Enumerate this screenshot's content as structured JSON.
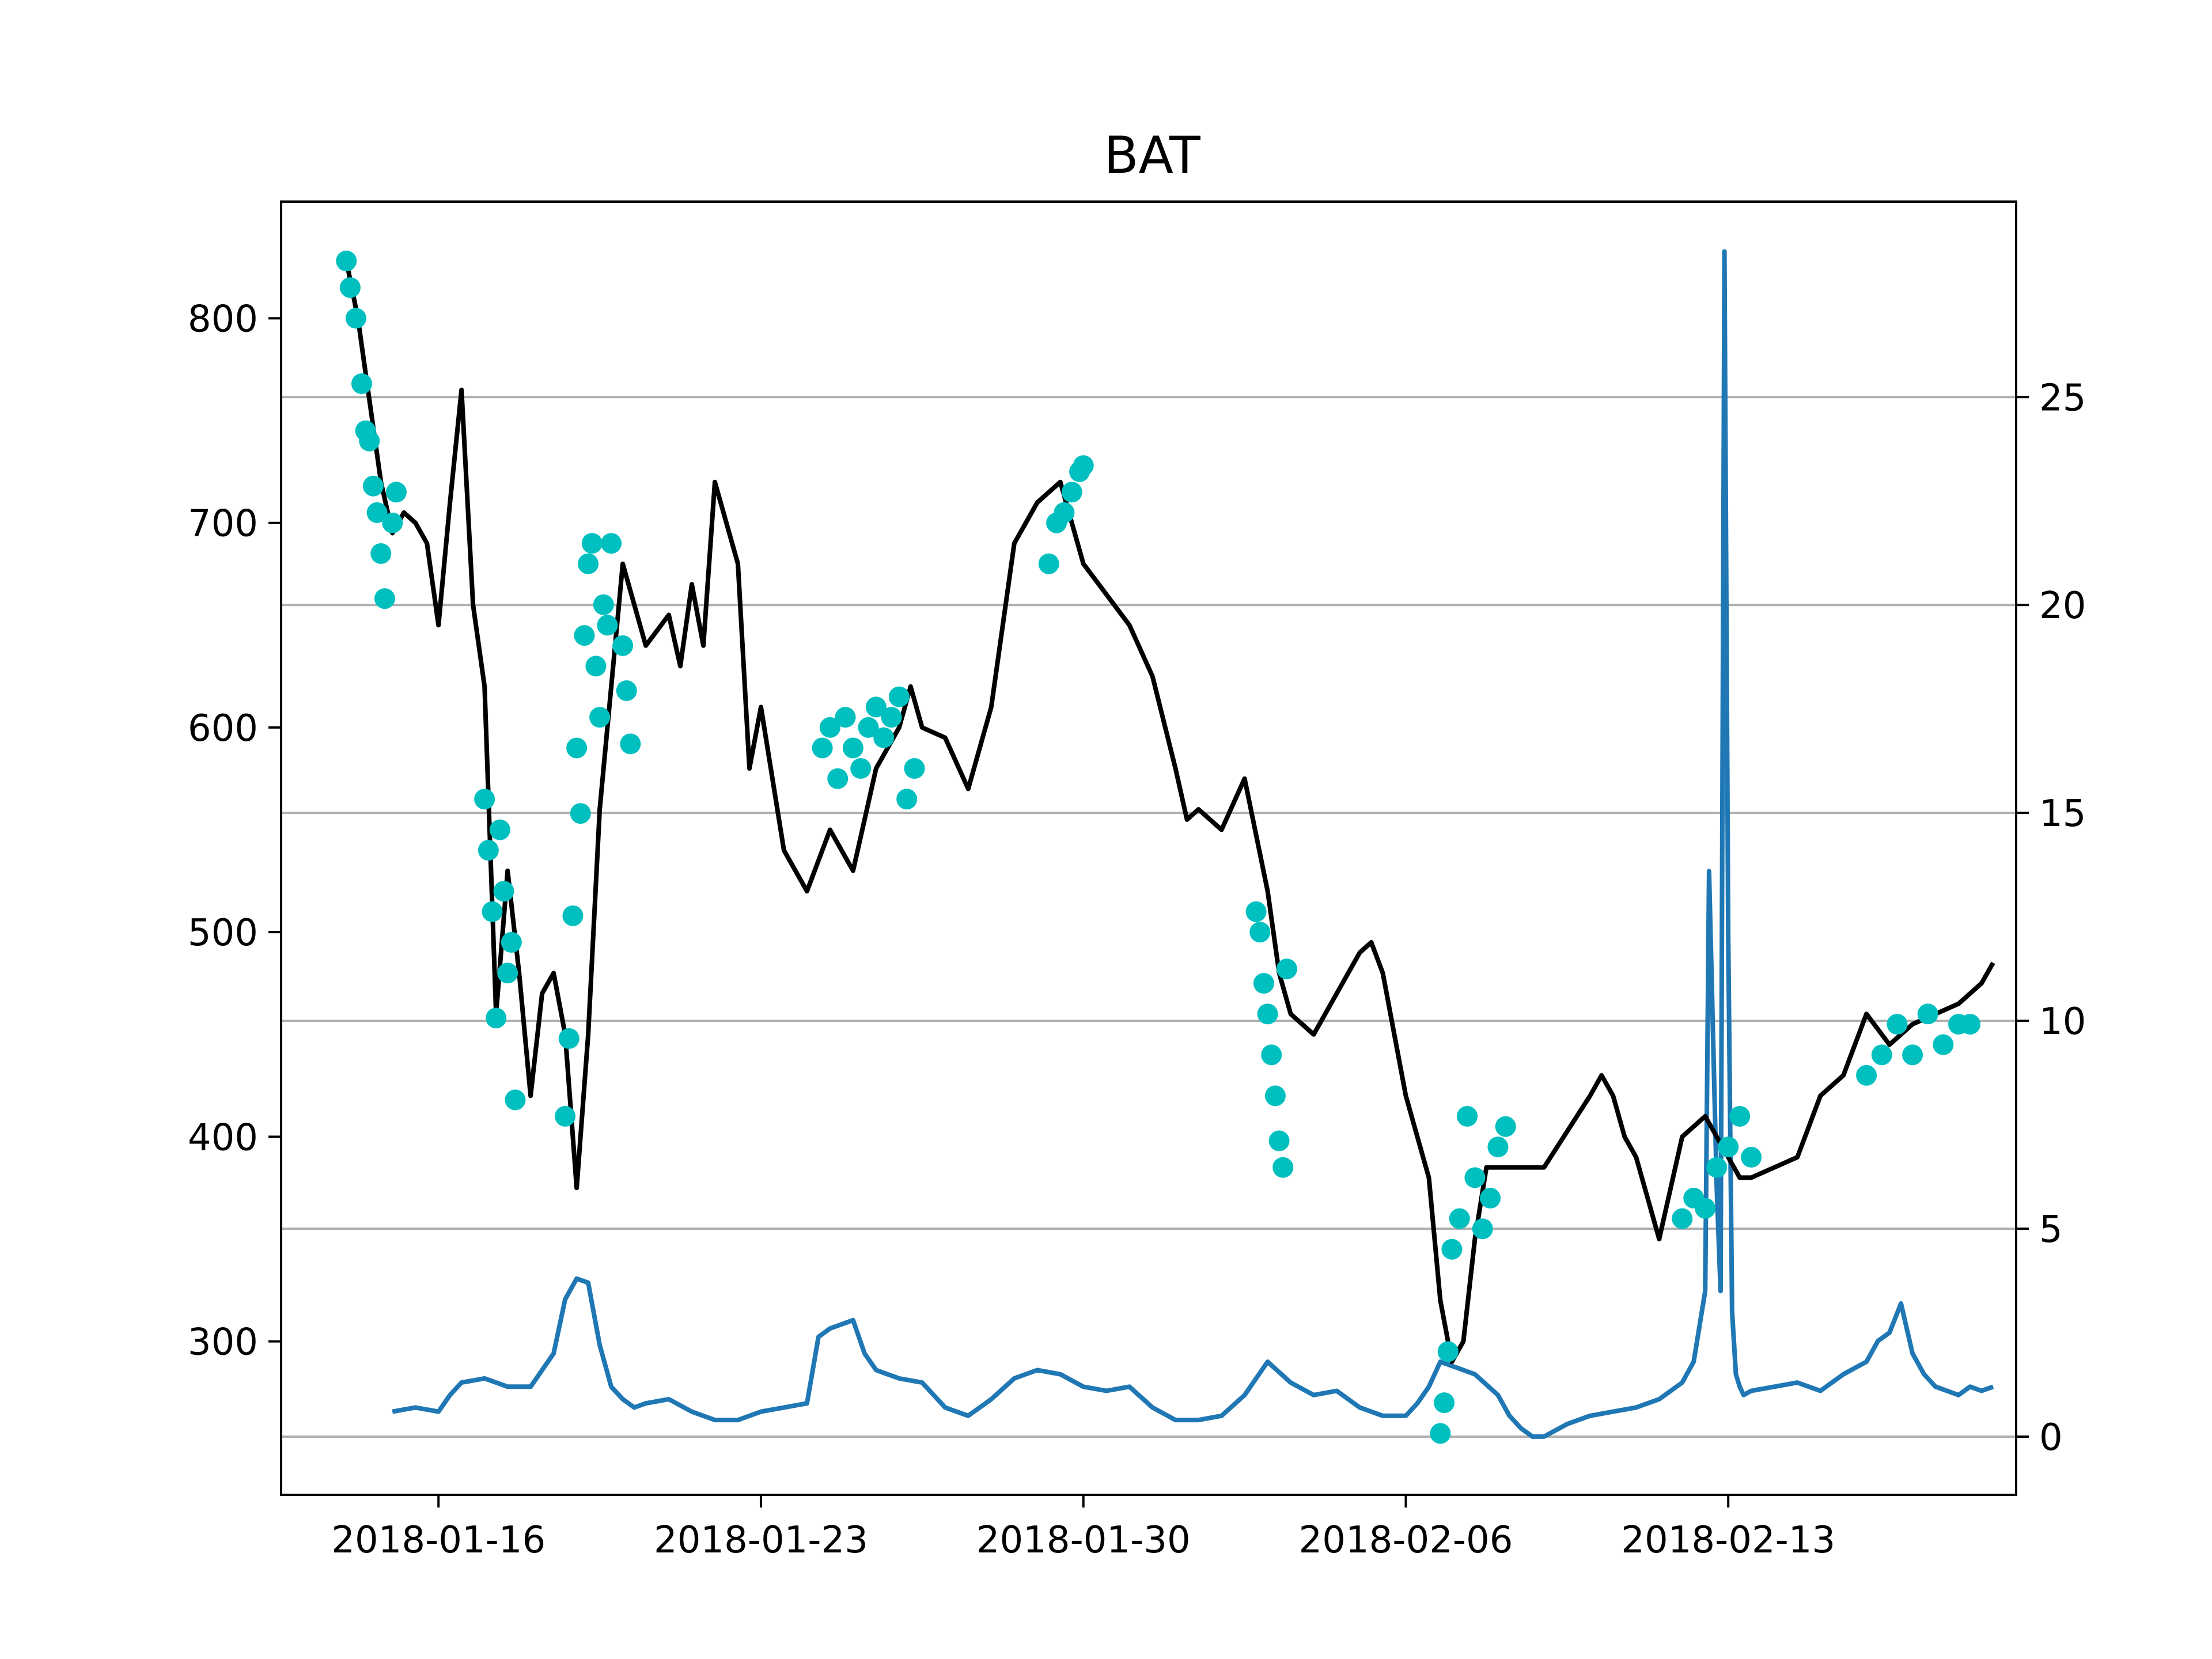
{
  "chart_data": {
    "type": "line",
    "title": "BAT",
    "xlabel": "",
    "ylabel": "",
    "y2label": "",
    "x_ticks": [
      "2018-01-16",
      "2018-01-23",
      "2018-01-30",
      "2018-02-06",
      "2018-02-13"
    ],
    "xlim": [
      "2018-01-12 14:00",
      "2018-02-19 06:00"
    ],
    "ylim": [
      225,
      857
    ],
    "y_ticks": [
      300,
      400,
      500,
      600,
      700,
      800
    ],
    "y2lim": [
      -1.4,
      29.7
    ],
    "y2_ticks": [
      0,
      5,
      10,
      15,
      20,
      25
    ],
    "grid": "horizontal on right axis",
    "colors": {
      "price": "#000000",
      "markers": "#00bfbf",
      "secondary": "#1f77b4",
      "grid": "#b0b0b0"
    },
    "series": [
      {
        "axis": "left",
        "color": "#000000",
        "x": [
          "2018-01-14",
          "2018-01-14 06:00",
          "2018-01-14 12:00",
          "2018-01-14 18:00",
          "2018-01-15",
          "2018-01-15 06:00",
          "2018-01-15 12:00",
          "2018-01-15 18:00",
          "2018-01-16",
          "2018-01-16 06:00",
          "2018-01-16 12:00",
          "2018-01-16 18:00",
          "2018-01-17",
          "2018-01-17 06:00",
          "2018-01-17 12:00",
          "2018-01-17 18:00",
          "2018-01-18",
          "2018-01-18 06:00",
          "2018-01-18 12:00",
          "2018-01-18 18:00",
          "2018-01-19",
          "2018-01-19 06:00",
          "2018-01-19 12:00",
          "2018-01-19 18:00",
          "2018-01-20",
          "2018-01-20 12:00",
          "2018-01-21",
          "2018-01-21 06:00",
          "2018-01-21 12:00",
          "2018-01-21 18:00",
          "2018-01-22",
          "2018-01-22 06:00",
          "2018-01-22 12:00",
          "2018-01-22 18:00",
          "2018-01-23",
          "2018-01-23 12:00",
          "2018-01-24",
          "2018-01-24 12:00",
          "2018-01-25",
          "2018-01-25 12:00",
          "2018-01-26",
          "2018-01-26 06:00",
          "2018-01-26 12:00",
          "2018-01-27",
          "2018-01-27 12:00",
          "2018-01-28",
          "2018-01-28 12:00",
          "2018-01-29",
          "2018-01-29 12:00",
          "2018-01-30",
          "2018-01-30 12:00",
          "2018-01-31",
          "2018-01-31 12:00",
          "2018-02-01",
          "2018-02-01 06:00",
          "2018-02-01 12:00",
          "2018-02-02",
          "2018-02-02 12:00",
          "2018-02-03",
          "2018-02-03 06:00",
          "2018-02-03 12:00",
          "2018-02-04",
          "2018-02-04 12:00",
          "2018-02-05",
          "2018-02-05 06:00",
          "2018-02-05 12:00",
          "2018-02-05 18:00",
          "2018-02-06",
          "2018-02-06 06:00",
          "2018-02-06 12:00",
          "2018-02-06 18:00",
          "2018-02-07",
          "2018-02-07 06:00",
          "2018-02-07 12:00",
          "2018-02-07 18:00",
          "2018-02-08",
          "2018-02-09",
          "2018-02-10",
          "2018-02-10 06:00",
          "2018-02-10 12:00",
          "2018-02-10 18:00",
          "2018-02-11",
          "2018-02-11 06:00",
          "2018-02-11 12:00",
          "2018-02-12",
          "2018-02-12 12:00",
          "2018-02-13",
          "2018-02-13 06:00",
          "2018-02-13 12:00",
          "2018-02-14",
          "2018-02-14 12:00",
          "2018-02-15",
          "2018-02-15 12:00",
          "2018-02-16",
          "2018-02-16 12:00",
          "2018-02-17",
          "2018-02-17 12:00",
          "2018-02-18",
          "2018-02-18 12:00",
          "2018-02-18 18:00"
        ],
        "y": [
          828,
          800,
          760,
          720,
          695,
          705,
          700,
          690,
          650,
          710,
          765,
          660,
          620,
          460,
          530,
          480,
          420,
          470,
          480,
          450,
          375,
          450,
          560,
          620,
          680,
          640,
          655,
          630,
          670,
          640,
          720,
          700,
          680,
          580,
          610,
          540,
          520,
          550,
          530,
          580,
          600,
          620,
          600,
          595,
          570,
          610,
          690,
          710,
          720,
          680,
          665,
          650,
          625,
          580,
          555,
          560,
          550,
          575,
          520,
          480,
          460,
          450,
          470,
          490,
          495,
          480,
          450,
          420,
          400,
          380,
          320,
          290,
          300,
          350,
          385,
          385,
          385,
          420,
          430,
          420,
          400,
          390,
          370,
          350,
          400,
          410,
          390,
          380,
          380,
          385,
          390,
          420,
          430,
          460,
          445,
          455,
          460,
          465,
          475,
          485
        ]
      },
      {
        "axis": "left",
        "color": "#00bfbf",
        "style": "markers",
        "x": [
          "2018-01-14",
          "2018-01-14 02:00",
          "2018-01-14 05:00",
          "2018-01-14 08:00",
          "2018-01-14 10:00",
          "2018-01-14 12:00",
          "2018-01-14 14:00",
          "2018-01-14 16:00",
          "2018-01-14 18:00",
          "2018-01-14 20:00",
          "2018-01-15",
          "2018-01-15 02:00",
          "2018-01-17",
          "2018-01-17 02:00",
          "2018-01-17 04:00",
          "2018-01-17 06:00",
          "2018-01-17 08:00",
          "2018-01-17 10:00",
          "2018-01-17 12:00",
          "2018-01-17 14:00",
          "2018-01-17 16:00",
          "2018-01-18 18:00",
          "2018-01-18 20:00",
          "2018-01-18 22:00",
          "2018-01-19",
          "2018-01-19 02:00",
          "2018-01-19 04:00",
          "2018-01-19 06:00",
          "2018-01-19 08:00",
          "2018-01-19 10:00",
          "2018-01-19 12:00",
          "2018-01-19 14:00",
          "2018-01-19 16:00",
          "2018-01-19 18:00",
          "2018-01-20",
          "2018-01-20 02:00",
          "2018-01-20 04:00",
          "2018-01-24 08:00",
          "2018-01-24 12:00",
          "2018-01-24 16:00",
          "2018-01-24 20:00",
          "2018-01-25",
          "2018-01-25 04:00",
          "2018-01-25 08:00",
          "2018-01-25 12:00",
          "2018-01-25 16:00",
          "2018-01-25 20:00",
          "2018-01-26",
          "2018-01-26 04:00",
          "2018-01-26 08:00",
          "2018-01-29 06:00",
          "2018-01-29 10:00",
          "2018-01-29 14:00",
          "2018-01-29 18:00",
          "2018-01-29 22:00",
          "2018-01-30",
          "2018-02-02 18:00",
          "2018-02-02 20:00",
          "2018-02-02 22:00",
          "2018-02-03",
          "2018-02-03 02:00",
          "2018-02-03 04:00",
          "2018-02-03 06:00",
          "2018-02-03 08:00",
          "2018-02-03 10:00",
          "2018-02-06 18:00",
          "2018-02-06 20:00",
          "2018-02-06 22:00",
          "2018-02-07",
          "2018-02-07 04:00",
          "2018-02-07 08:00",
          "2018-02-07 12:00",
          "2018-02-07 16:00",
          "2018-02-07 20:00",
          "2018-02-08",
          "2018-02-08 04:00",
          "2018-02-12",
          "2018-02-12 06:00",
          "2018-02-12 12:00",
          "2018-02-12 18:00",
          "2018-02-13",
          "2018-02-13 06:00",
          "2018-02-13 12:00",
          "2018-02-16",
          "2018-02-16 08:00",
          "2018-02-16 16:00",
          "2018-02-17",
          "2018-02-17 08:00",
          "2018-02-17 16:00",
          "2018-02-18",
          "2018-02-18 06:00"
        ],
        "y": [
          828,
          815,
          800,
          768,
          745,
          740,
          718,
          705,
          685,
          663,
          700,
          715,
          565,
          540,
          510,
          458,
          550,
          520,
          480,
          495,
          418,
          410,
          448,
          508,
          590,
          558,
          645,
          680,
          690,
          630,
          605,
          660,
          650,
          690,
          640,
          618,
          592,
          590,
          600,
          575,
          605,
          590,
          580,
          600,
          610,
          595,
          605,
          615,
          565,
          580,
          680,
          700,
          705,
          715,
          725,
          728,
          510,
          500,
          475,
          460,
          440,
          420,
          398,
          385,
          482,
          255,
          270,
          295,
          345,
          360,
          410,
          380,
          355,
          370,
          395,
          405,
          360,
          370,
          365,
          385,
          395,
          410,
          390,
          430,
          440,
          455,
          440,
          460,
          445,
          455,
          455
        ]
      },
      {
        "axis": "right",
        "color": "#1f77b4",
        "x": [
          "2018-01-15",
          "2018-01-15 12:00",
          "2018-01-16",
          "2018-01-16 06:00",
          "2018-01-16 12:00",
          "2018-01-17",
          "2018-01-17 12:00",
          "2018-01-18",
          "2018-01-18 12:00",
          "2018-01-18 18:00",
          "2018-01-19",
          "2018-01-19 06:00",
          "2018-01-19 12:00",
          "2018-01-19 18:00",
          "2018-01-20",
          "2018-01-20 06:00",
          "2018-01-20 12:00",
          "2018-01-21",
          "2018-01-21 12:00",
          "2018-01-22",
          "2018-01-22 12:00",
          "2018-01-23",
          "2018-01-23 12:00",
          "2018-01-24",
          "2018-01-24 06:00",
          "2018-01-24 12:00",
          "2018-01-24 18:00",
          "2018-01-25",
          "2018-01-25 06:00",
          "2018-01-25 12:00",
          "2018-01-25 18:00",
          "2018-01-26",
          "2018-01-26 12:00",
          "2018-01-27",
          "2018-01-27 12:00",
          "2018-01-28",
          "2018-01-28 12:00",
          "2018-01-29",
          "2018-01-29 12:00",
          "2018-01-30",
          "2018-01-30 12:00",
          "2018-01-31",
          "2018-01-31 12:00",
          "2018-02-01",
          "2018-02-01 12:00",
          "2018-02-02",
          "2018-02-02 12:00",
          "2018-02-02 18:00",
          "2018-02-03",
          "2018-02-03 12:00",
          "2018-02-04",
          "2018-02-04 12:00",
          "2018-02-05",
          "2018-02-05 12:00",
          "2018-02-06",
          "2018-02-06 06:00",
          "2018-02-06 12:00",
          "2018-02-06 18:00",
          "2018-02-07",
          "2018-02-07 12:00",
          "2018-02-08",
          "2018-02-08 06:00",
          "2018-02-08 12:00",
          "2018-02-08 18:00",
          "2018-02-09",
          "2018-02-09 12:00",
          "2018-02-10",
          "2018-02-10 12:00",
          "2018-02-11",
          "2018-02-11 12:00",
          "2018-02-12",
          "2018-02-12 06:00",
          "2018-02-12 12:00",
          "2018-02-12 14:00",
          "2018-02-12 18:00",
          "2018-02-12 20:00",
          "2018-02-12 22:00",
          "2018-02-13",
          "2018-02-13 02:00",
          "2018-02-13 04:00",
          "2018-02-13 06:00",
          "2018-02-13 08:00",
          "2018-02-13 12:00",
          "2018-02-14",
          "2018-02-14 12:00",
          "2018-02-15",
          "2018-02-15 12:00",
          "2018-02-16",
          "2018-02-16 06:00",
          "2018-02-16 12:00",
          "2018-02-16 18:00",
          "2018-02-17",
          "2018-02-17 06:00",
          "2018-02-17 12:00",
          "2018-02-18",
          "2018-02-18 06:00",
          "2018-02-18 12:00",
          "2018-02-18 18:00"
        ],
        "y": [
          0.6,
          0.7,
          0.6,
          1.0,
          1.3,
          1.4,
          1.2,
          1.2,
          2.0,
          3.3,
          3.8,
          3.7,
          2.2,
          1.2,
          0.9,
          0.7,
          0.8,
          0.9,
          0.6,
          0.4,
          0.4,
          0.6,
          0.7,
          0.8,
          2.4,
          2.6,
          2.7,
          2.8,
          2.0,
          1.6,
          1.5,
          1.4,
          1.3,
          0.7,
          0.5,
          0.9,
          1.4,
          1.6,
          1.5,
          1.2,
          1.1,
          1.2,
          0.7,
          0.4,
          0.4,
          0.5,
          1.0,
          1.4,
          1.8,
          1.3,
          1.0,
          1.1,
          0.7,
          0.5,
          0.5,
          0.8,
          1.2,
          1.8,
          1.7,
          1.5,
          1.0,
          0.5,
          0.2,
          0.0,
          0.0,
          0.3,
          0.5,
          0.6,
          0.7,
          0.9,
          1.3,
          1.8,
          3.5,
          13.6,
          6.0,
          3.5,
          28.5,
          12.0,
          3.0,
          1.5,
          1.2,
          1.0,
          1.1,
          1.2,
          1.3,
          1.1,
          1.5,
          1.8,
          2.3,
          2.5,
          3.2,
          2.0,
          1.5,
          1.2,
          1.0,
          1.2,
          1.1,
          1.2
        ]
      }
    ]
  }
}
